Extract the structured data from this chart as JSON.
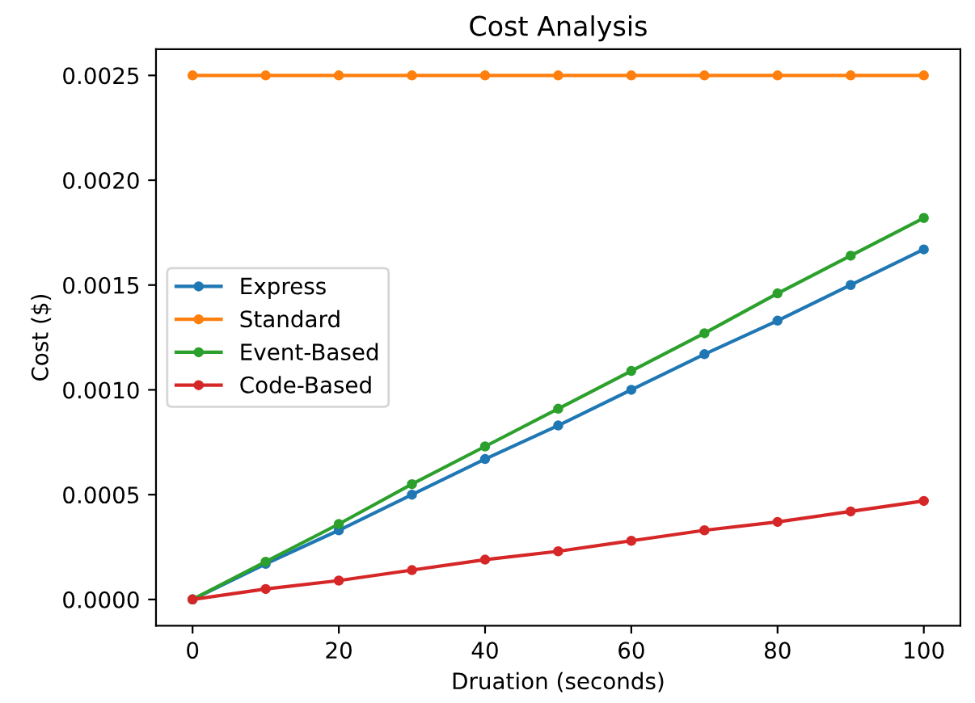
{
  "chart_data": {
    "type": "line",
    "title": "Cost Analysis",
    "xlabel": "Druation (seconds)",
    "ylabel": "Cost ($)",
    "x": [
      0,
      10,
      20,
      30,
      40,
      50,
      60,
      70,
      80,
      90,
      100
    ],
    "series": [
      {
        "name": "Express",
        "color": "#1f77b4",
        "values": [
          0,
          0.00017,
          0.00033,
          0.0005,
          0.00067,
          0.00083,
          0.001,
          0.00117,
          0.00133,
          0.0015,
          0.00167
        ]
      },
      {
        "name": "Standard",
        "color": "#ff7f0e",
        "values": [
          0.0025,
          0.0025,
          0.0025,
          0.0025,
          0.0025,
          0.0025,
          0.0025,
          0.0025,
          0.0025,
          0.0025,
          0.0025
        ]
      },
      {
        "name": "Event-Based",
        "color": "#2ca02c",
        "values": [
          0,
          0.00018,
          0.00036,
          0.00055,
          0.00073,
          0.00091,
          0.00109,
          0.00127,
          0.00146,
          0.00164,
          0.00182
        ]
      },
      {
        "name": "Code-Based",
        "color": "#d62728",
        "values": [
          0,
          5e-05,
          9e-05,
          0.00014,
          0.00019,
          0.00023,
          0.00028,
          0.00033,
          0.00037,
          0.00042,
          0.00047
        ]
      }
    ],
    "xlim": [
      -5,
      105
    ],
    "xticks": [
      0,
      20,
      40,
      60,
      80,
      100
    ],
    "ylim": [
      -0.000125,
      0.002625
    ],
    "yticks": [
      {
        "value": 0,
        "label": "0.0000"
      },
      {
        "value": 0.0005,
        "label": "0.0005"
      },
      {
        "value": 0.001,
        "label": "0.0010"
      },
      {
        "value": 0.0015,
        "label": "0.0015"
      },
      {
        "value": 0.002,
        "label": "0.0020"
      },
      {
        "value": 0.0025,
        "label": "0.0025"
      }
    ],
    "grid": false,
    "legend": "center left",
    "marker": "circle",
    "line_style": "solid"
  }
}
